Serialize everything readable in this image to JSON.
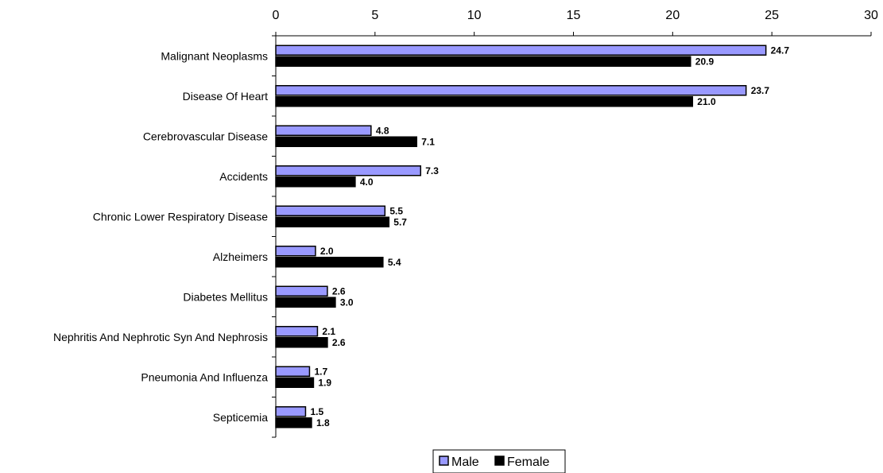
{
  "chart_data": {
    "type": "bar",
    "orientation": "horizontal",
    "categories": [
      "Malignant Neoplasms",
      "Disease Of Heart",
      "Cerebrovascular Disease",
      "Accidents",
      "Chronic Lower Respiratory Disease",
      "Alzheimers",
      "Diabetes Mellitus",
      "Nephritis And Nephrotic Syn And Nephrosis",
      "Pneumonia And Influenza",
      "Septicemia"
    ],
    "series": [
      {
        "name": "Male",
        "color": "#9999ff",
        "values": [
          24.7,
          23.7,
          4.8,
          7.3,
          5.5,
          2.0,
          2.6,
          2.1,
          1.7,
          1.5
        ],
        "labels": [
          "24.7",
          "23.7",
          "4.8",
          "7.3",
          "5.5",
          "2.0",
          "2.6",
          "2.1",
          "1.7",
          "1.5"
        ]
      },
      {
        "name": "Female",
        "color": "#000000",
        "values": [
          20.9,
          21.0,
          7.1,
          4.0,
          5.7,
          5.4,
          3.0,
          2.6,
          1.9,
          1.8
        ],
        "labels": [
          "20.9",
          "21.0",
          "7.1",
          "4.0",
          "5.7",
          "5.4",
          "3.0",
          "2.6",
          "1.9",
          "1.8"
        ]
      }
    ],
    "xlim": [
      0,
      30
    ],
    "xticks": [
      0,
      5,
      10,
      15,
      20,
      25,
      30
    ],
    "xtick_labels": [
      "0",
      "5",
      "10",
      "15",
      "20",
      "25",
      "30"
    ],
    "x_axis_position": "top",
    "grid": false,
    "legend": {
      "position": "bottom-center",
      "entries": [
        "Male",
        "Female"
      ]
    },
    "title": "",
    "xlabel": "",
    "ylabel": ""
  }
}
